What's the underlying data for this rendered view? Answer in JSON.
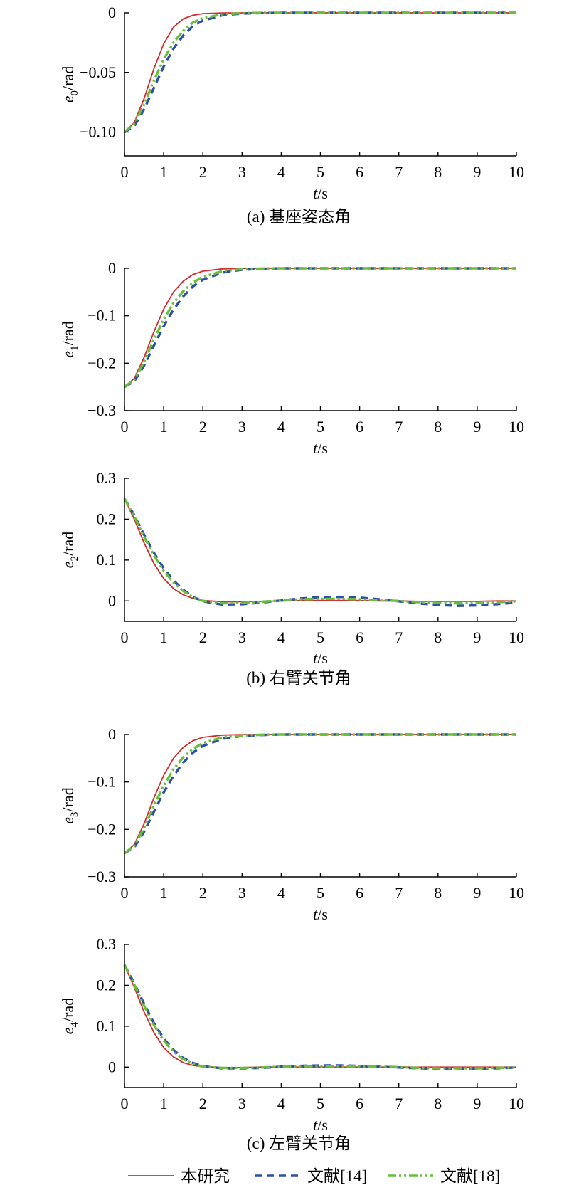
{
  "series_styles": [
    {
      "key": "ours",
      "color": "#d42a2a",
      "dash": "",
      "width": 1.8
    },
    {
      "key": "ref14",
      "color": "#2b4fa8",
      "dash": "10,7",
      "width": 3.4
    },
    {
      "key": "ref18",
      "color": "#6abf3a",
      "dash": "12,4,3,4,3,4",
      "width": 3.4
    }
  ],
  "legend": [
    {
      "key": "ours",
      "label": "本研究"
    },
    {
      "key": "ref14",
      "label": "文献[14]"
    },
    {
      "key": "ref18",
      "label": "文献[18]"
    }
  ],
  "captions": {
    "a": "(a) 基座姿态角",
    "b": "(b) 右臂关节角",
    "c": "(c) 左臂关节角"
  },
  "chart_data": [
    {
      "type": "line",
      "ylabel_var": "e",
      "ylabel_sub": "0",
      "ylabel_unit": "/rad",
      "xlabel_var": "t",
      "xlabel_unit": "/s",
      "xlim": [
        0,
        10
      ],
      "ylim": [
        -0.12,
        0.0
      ],
      "xticks": [
        "0",
        "1",
        "2",
        "3",
        "4",
        "5",
        "6",
        "7",
        "8",
        "9",
        "10"
      ],
      "yticks": [
        {
          "v": 0,
          "label": "0"
        },
        {
          "v": -0.05,
          "label": "−0.05"
        },
        {
          "v": -0.1,
          "label": "−0.10"
        }
      ],
      "x": [
        0,
        0.25,
        0.5,
        0.75,
        1,
        1.25,
        1.5,
        1.75,
        2,
        2.5,
        3,
        3.5,
        4,
        5,
        6,
        7,
        8,
        9,
        10
      ],
      "series": [
        {
          "key": "ours",
          "values": [
            -0.1,
            -0.092,
            -0.072,
            -0.047,
            -0.026,
            -0.012,
            -0.005,
            -0.002,
            -0.0007,
            -0.0001,
            0,
            0,
            0,
            0,
            0,
            0,
            0,
            0,
            0
          ]
        },
        {
          "key": "ref14",
          "values": [
            -0.1,
            -0.095,
            -0.081,
            -0.063,
            -0.045,
            -0.03,
            -0.019,
            -0.011,
            -0.0065,
            -0.002,
            -0.0006,
            -0.0002,
            0,
            0,
            0,
            0,
            0,
            0,
            0
          ]
        },
        {
          "key": "ref18",
          "values": [
            -0.1,
            -0.093,
            -0.077,
            -0.057,
            -0.039,
            -0.025,
            -0.015,
            -0.008,
            -0.0045,
            -0.0012,
            -0.0003,
            0,
            0,
            0,
            0,
            0,
            0,
            0,
            0
          ]
        }
      ]
    },
    {
      "type": "line",
      "ylabel_var": "e",
      "ylabel_sub": "1",
      "ylabel_unit": "/rad",
      "xlabel_var": "t",
      "xlabel_unit": "/s",
      "xlim": [
        0,
        10
      ],
      "ylim": [
        -0.3,
        0.0
      ],
      "xticks": [
        "0",
        "1",
        "2",
        "3",
        "4",
        "5",
        "6",
        "7",
        "8",
        "9",
        "10"
      ],
      "yticks": [
        {
          "v": 0,
          "label": "0"
        },
        {
          "v": -0.1,
          "label": "−0.1"
        },
        {
          "v": -0.2,
          "label": "−0.2"
        },
        {
          "v": -0.3,
          "label": "−0.3"
        }
      ],
      "x": [
        0,
        0.25,
        0.5,
        0.75,
        1,
        1.25,
        1.5,
        1.75,
        2,
        2.5,
        3,
        3.5,
        4,
        5,
        6,
        7,
        8,
        9,
        10
      ],
      "series": [
        {
          "key": "ours",
          "values": [
            -0.25,
            -0.232,
            -0.188,
            -0.134,
            -0.086,
            -0.05,
            -0.027,
            -0.013,
            -0.006,
            -0.0012,
            -0.0002,
            0,
            0,
            0,
            0,
            0,
            0,
            0,
            0
          ]
        },
        {
          "key": "ref14",
          "values": [
            -0.25,
            -0.238,
            -0.205,
            -0.163,
            -0.122,
            -0.087,
            -0.059,
            -0.038,
            -0.024,
            -0.009,
            -0.003,
            -0.001,
            0,
            0,
            0,
            0,
            0,
            0,
            0
          ]
        },
        {
          "key": "ref18",
          "values": [
            -0.25,
            -0.235,
            -0.197,
            -0.15,
            -0.108,
            -0.073,
            -0.048,
            -0.03,
            -0.018,
            -0.006,
            -0.002,
            -0.0005,
            0,
            0,
            0,
            0,
            0,
            0,
            0
          ]
        }
      ]
    },
    {
      "type": "line",
      "ylabel_var": "e",
      "ylabel_sub": "2",
      "ylabel_unit": "/rad",
      "xlabel_var": "t",
      "xlabel_unit": "/s",
      "xlim": [
        0,
        10
      ],
      "ylim": [
        -0.05,
        0.3
      ],
      "xticks": [
        "0",
        "1",
        "2",
        "3",
        "4",
        "5",
        "6",
        "7",
        "8",
        "9",
        "10"
      ],
      "yticks": [
        {
          "v": 0,
          "label": "0"
        },
        {
          "v": 0.1,
          "label": "0.1"
        },
        {
          "v": 0.2,
          "label": "0.2"
        },
        {
          "v": 0.3,
          "label": "0.3"
        }
      ],
      "x": [
        0,
        0.25,
        0.5,
        0.75,
        1,
        1.25,
        1.5,
        1.75,
        2,
        2.5,
        3,
        3.5,
        4,
        4.5,
        5,
        5.5,
        6,
        6.5,
        7,
        7.5,
        8,
        8.5,
        9,
        9.5,
        10
      ],
      "series": [
        {
          "key": "ours",
          "values": [
            0.25,
            0.2,
            0.142,
            0.092,
            0.055,
            0.03,
            0.015,
            0.006,
            0.001,
            -0.002,
            -0.002,
            -0.001,
            0,
            0.001,
            0.001,
            0.001,
            0.001,
            0,
            0,
            -0.001,
            -0.001,
            -0.001,
            -0.001,
            0,
            0
          ]
        },
        {
          "key": "ref14",
          "values": [
            0.25,
            0.21,
            0.162,
            0.118,
            0.08,
            0.05,
            0.027,
            0.01,
            -0.001,
            -0.009,
            -0.008,
            -0.004,
            0.001,
            0.006,
            0.009,
            0.01,
            0.008,
            0.004,
            -0.001,
            -0.006,
            -0.01,
            -0.012,
            -0.011,
            -0.008,
            -0.004
          ]
        },
        {
          "key": "ref18",
          "values": [
            0.25,
            0.207,
            0.157,
            0.112,
            0.074,
            0.045,
            0.024,
            0.009,
            0,
            -0.006,
            -0.005,
            -0.002,
            0.001,
            0.004,
            0.005,
            0.005,
            0.004,
            0.002,
            0,
            -0.003,
            -0.005,
            -0.006,
            -0.005,
            -0.003,
            -0.001
          ]
        }
      ]
    },
    {
      "type": "line",
      "ylabel_var": "e",
      "ylabel_sub": "3",
      "ylabel_unit": "/rad",
      "xlabel_var": "t",
      "xlabel_unit": "/s",
      "xlim": [
        0,
        10
      ],
      "ylim": [
        -0.3,
        0.0
      ],
      "xticks": [
        "0",
        "1",
        "2",
        "3",
        "4",
        "5",
        "6",
        "7",
        "8",
        "9",
        "10"
      ],
      "yticks": [
        {
          "v": 0,
          "label": "0"
        },
        {
          "v": -0.1,
          "label": "−0.1"
        },
        {
          "v": -0.2,
          "label": "−0.2"
        },
        {
          "v": -0.3,
          "label": "−0.3"
        }
      ],
      "x": [
        0,
        0.25,
        0.5,
        0.75,
        1,
        1.25,
        1.5,
        1.75,
        2,
        2.5,
        3,
        3.5,
        4,
        5,
        6,
        7,
        8,
        9,
        10
      ],
      "series": [
        {
          "key": "ours",
          "values": [
            -0.25,
            -0.232,
            -0.188,
            -0.134,
            -0.086,
            -0.05,
            -0.027,
            -0.013,
            -0.006,
            -0.0012,
            -0.0002,
            0,
            0,
            0,
            0,
            0,
            0,
            0,
            0
          ]
        },
        {
          "key": "ref14",
          "values": [
            -0.25,
            -0.238,
            -0.205,
            -0.163,
            -0.122,
            -0.087,
            -0.059,
            -0.038,
            -0.024,
            -0.009,
            -0.003,
            -0.001,
            0,
            0,
            0,
            0,
            0,
            0,
            0
          ]
        },
        {
          "key": "ref18",
          "values": [
            -0.25,
            -0.235,
            -0.197,
            -0.15,
            -0.108,
            -0.073,
            -0.048,
            -0.03,
            -0.018,
            -0.006,
            -0.002,
            -0.0005,
            0,
            0,
            0,
            0,
            0,
            0,
            0
          ]
        }
      ]
    },
    {
      "type": "line",
      "ylabel_var": "e",
      "ylabel_sub": "4",
      "ylabel_unit": "/rad",
      "xlabel_var": "t",
      "xlabel_unit": "/s",
      "xlim": [
        0,
        10
      ],
      "ylim": [
        -0.05,
        0.3
      ],
      "xticks": [
        "0",
        "1",
        "2",
        "3",
        "4",
        "5",
        "6",
        "7",
        "8",
        "9",
        "10"
      ],
      "yticks": [
        {
          "v": 0,
          "label": "0"
        },
        {
          "v": 0.1,
          "label": "0.1"
        },
        {
          "v": 0.2,
          "label": "0.2"
        },
        {
          "v": 0.3,
          "label": "0.3"
        }
      ],
      "x": [
        0,
        0.25,
        0.5,
        0.75,
        1,
        1.25,
        1.5,
        1.75,
        2,
        2.5,
        3,
        3.5,
        4,
        4.5,
        5,
        5.5,
        6,
        6.5,
        7,
        7.5,
        8,
        8.5,
        9,
        9.5,
        10
      ],
      "series": [
        {
          "key": "ours",
          "values": [
            0.25,
            0.195,
            0.135,
            0.085,
            0.048,
            0.025,
            0.011,
            0.004,
            0.001,
            -0.001,
            -0.001,
            0,
            0,
            0,
            0,
            0,
            0,
            0,
            0,
            0,
            0,
            0,
            0,
            0,
            0
          ]
        },
        {
          "key": "ref14",
          "values": [
            0.25,
            0.205,
            0.155,
            0.108,
            0.07,
            0.042,
            0.022,
            0.01,
            0.002,
            -0.003,
            -0.003,
            -0.002,
            0.001,
            0.003,
            0.004,
            0.004,
            0.003,
            0.001,
            -0.001,
            -0.003,
            -0.004,
            -0.005,
            -0.004,
            -0.003,
            -0.001
          ]
        },
        {
          "key": "ref18",
          "values": [
            0.25,
            0.202,
            0.15,
            0.103,
            0.065,
            0.038,
            0.019,
            0.008,
            0.001,
            -0.002,
            -0.002,
            -0.001,
            0.001,
            0.002,
            0.002,
            0.002,
            0.002,
            0.001,
            0,
            -0.002,
            -0.003,
            -0.003,
            -0.003,
            -0.002,
            -0.001
          ]
        }
      ]
    }
  ]
}
